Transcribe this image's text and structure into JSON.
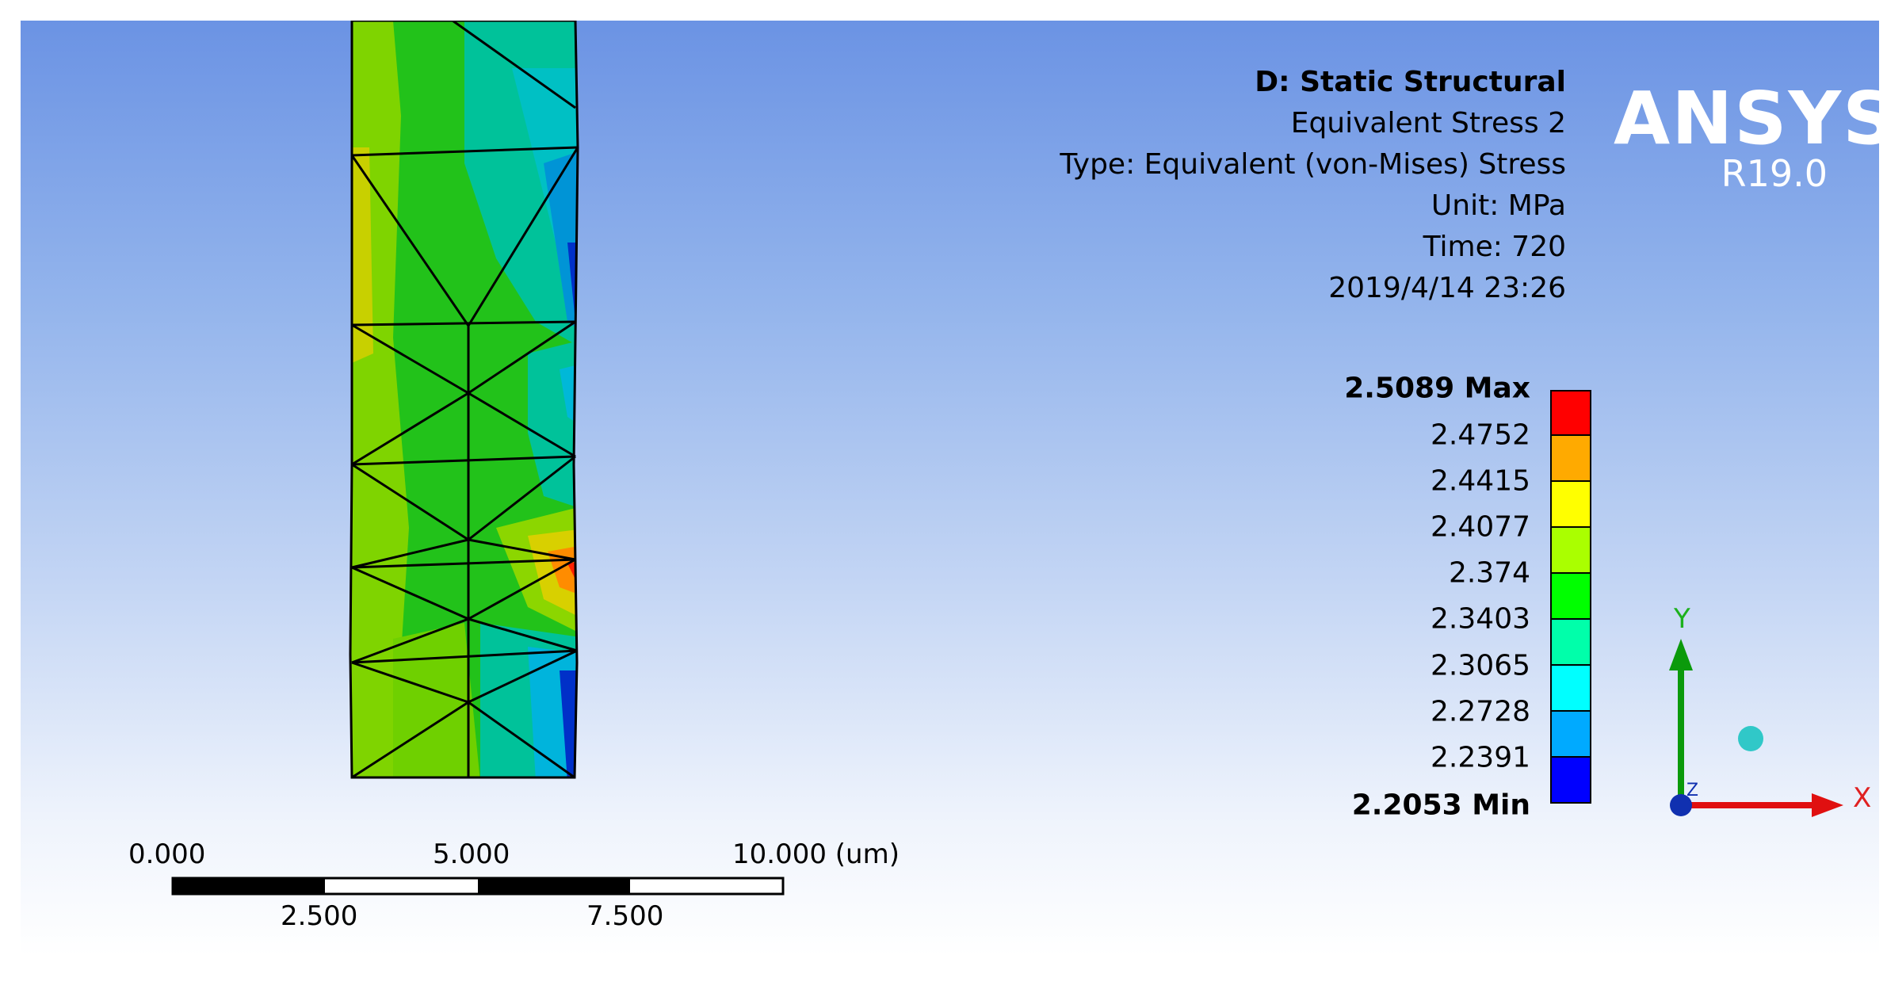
{
  "header": {
    "analysis": "D: Static Structural",
    "result": "Equivalent Stress 2",
    "type": "Type: Equivalent (von-Mises) Stress",
    "unit": "Unit: MPa",
    "time": "Time: 720",
    "date": "2019/4/14 23:26"
  },
  "logo": {
    "brand": "ANSYS",
    "version": "R19.0"
  },
  "legend": {
    "max": "2.5089 Max",
    "min": "2.2053 Min",
    "levels": [
      "2.4752",
      "2.4415",
      "2.4077",
      "2.374",
      "2.3403",
      "2.3065",
      "2.2728",
      "2.2391"
    ],
    "colors": [
      "#ff0000",
      "#ffaa00",
      "#ffff00",
      "#aaff00",
      "#00ff00",
      "#00ffaa",
      "#00ffff",
      "#00aaff",
      "#0000ff"
    ]
  },
  "scale": {
    "top": [
      "0.000",
      "5.000",
      "10.000 (um)"
    ],
    "bottom": [
      "2.500",
      "7.500"
    ]
  },
  "triad": {
    "x": "X",
    "y": "Y",
    "z": "Z"
  }
}
